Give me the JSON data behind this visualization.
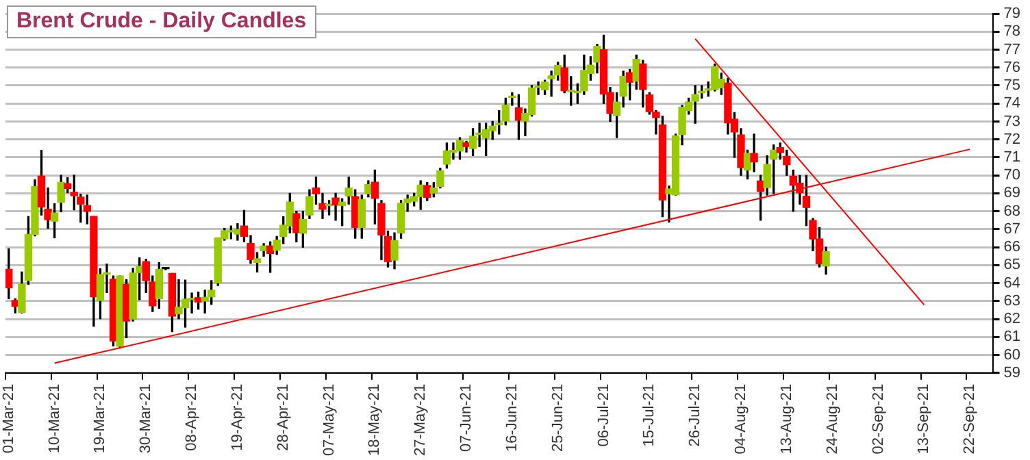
{
  "chart_data": {
    "type": "candlestick",
    "title": "Brent Crude - Daily Candles",
    "categories": [
      "01-Mar-21",
      null,
      null,
      null,
      null,
      null,
      null,
      "10-Mar-21",
      null,
      null,
      null,
      null,
      null,
      null,
      "19-Mar-21",
      null,
      null,
      null,
      null,
      null,
      null,
      "30-Mar-21",
      null,
      null,
      null,
      null,
      null,
      null,
      "08-Apr-21",
      null,
      null,
      null,
      null,
      null,
      null,
      "19-Apr-21",
      null,
      null,
      null,
      null,
      null,
      null,
      "28-Apr-21",
      null,
      null,
      null,
      null,
      null,
      null,
      "07-May-21",
      null,
      null,
      null,
      null,
      null,
      null,
      "18-May-21",
      null,
      null,
      null,
      null,
      null,
      null,
      "27-May-21",
      null,
      null,
      null,
      null,
      null,
      null,
      "07-Jun-21",
      null,
      null,
      null,
      null,
      null,
      null,
      "16-Jun-21",
      null,
      null,
      null,
      null,
      null,
      null,
      "25-Jun-21",
      null,
      null,
      null,
      null,
      null,
      null,
      "06-Jul-21",
      null,
      null,
      null,
      null,
      null,
      null,
      "15-Jul-21",
      null,
      null,
      null,
      null,
      null,
      null,
      "26-Jul-21",
      null,
      null,
      null,
      null,
      null,
      null,
      "04-Aug-21",
      null,
      null,
      null,
      null,
      null,
      null,
      "13-Aug-21",
      null,
      null,
      null,
      null,
      null,
      null,
      "24-Aug-21",
      null,
      null,
      null,
      null,
      null,
      null,
      "02-Sep-21",
      null,
      null,
      null,
      null,
      null,
      null,
      "13-Sep-21",
      null,
      null,
      null,
      null,
      null,
      null,
      "22-Sep-21",
      null,
      null,
      null
    ],
    "ohlc": [
      [
        64.77,
        65.91,
        63.13,
        63.74
      ],
      [
        63.03,
        63.13,
        62.34,
        62.71
      ],
      [
        62.37,
        64.62,
        62.34,
        63.95
      ],
      [
        64.14,
        67.71,
        63.93,
        66.71
      ],
      [
        66.71,
        69.75,
        66.63,
        69.38
      ],
      [
        69.96,
        71.39,
        67.79,
        68.24
      ],
      [
        68.11,
        69.3,
        67.05,
        67.53
      ],
      [
        67.45,
        68.42,
        66.52,
        67.9
      ],
      [
        68.5,
        70.01,
        67.97,
        69.61
      ],
      [
        69.54,
        69.88,
        69.03,
        69.27
      ],
      [
        69.06,
        70.01,
        68.08,
        68.87
      ],
      [
        68.79,
        68.95,
        67.39,
        68.4
      ],
      [
        68.32,
        68.9,
        67.3,
        68
      ],
      [
        67.71,
        67.71,
        61.6,
        63.24
      ],
      [
        63.03,
        64.8,
        62.02,
        64.48
      ],
      [
        64.5,
        65.06,
        63.48,
        64.55
      ],
      [
        64.22,
        64.4,
        60.5,
        60.78
      ],
      [
        60.49,
        64.4,
        60.38,
        64.4
      ],
      [
        63.93,
        64.19,
        60.96,
        61.89
      ],
      [
        62,
        64.83,
        61.89,
        64.56
      ],
      [
        64.59,
        65.41,
        63.08,
        64.93
      ],
      [
        65.2,
        65.33,
        63.48,
        64.14
      ],
      [
        64.06,
        64.4,
        62.42,
        62.74
      ],
      [
        63.13,
        65.14,
        62.6,
        64.77
      ],
      [
        64.8,
        64.85,
        64.75,
        64.8
      ],
      [
        64.54,
        64.54,
        61.3,
        62.16
      ],
      [
        62.29,
        64.19,
        62.02,
        62.66
      ],
      [
        62.63,
        64.17,
        61.55,
        63.11
      ],
      [
        63.08,
        63.45,
        62.34,
        63.1
      ],
      [
        63.19,
        63.5,
        62.55,
        62.95
      ],
      [
        63,
        63.61,
        62.34,
        63.21
      ],
      [
        63.24,
        64.14,
        62.82,
        63.61
      ],
      [
        64.01,
        66.52,
        63.87,
        66.52
      ],
      [
        66.47,
        67.05,
        66.39,
        66.92
      ],
      [
        66.85,
        67.18,
        66.47,
        66.88
      ],
      [
        66.73,
        67.31,
        66.39,
        66.99
      ],
      [
        67.18,
        68.05,
        66.31,
        66.6
      ],
      [
        66.21,
        66.65,
        65.1,
        65.31
      ],
      [
        65.15,
        65.7,
        64.62,
        65.36
      ],
      [
        65.81,
        66.2,
        65.5,
        66.07
      ],
      [
        66.07,
        66.3,
        64.6,
        65.65
      ],
      [
        65.83,
        66.6,
        65.6,
        66.39
      ],
      [
        66.6,
        67.7,
        66.2,
        67.23
      ],
      [
        67.18,
        69,
        66.8,
        68.51
      ],
      [
        67.87,
        68,
        66.3,
        66.81
      ],
      [
        66.78,
        68,
        66,
        67.55
      ],
      [
        67.79,
        69.2,
        67.6,
        68.82
      ],
      [
        69.3,
        69.9,
        68.4,
        68.98
      ],
      [
        68.43,
        69,
        67.6,
        68.11
      ],
      [
        68.32,
        68.6,
        67.8,
        68.35
      ],
      [
        68.74,
        69,
        67.5,
        68.35
      ],
      [
        68.32,
        68.7,
        67.2,
        68.51
      ],
      [
        68.85,
        69.9,
        68.4,
        69.3
      ],
      [
        68.82,
        69.2,
        66.5,
        67.1
      ],
      [
        67.1,
        68.9,
        66.5,
        68.66
      ],
      [
        68.98,
        69.7,
        68.8,
        69.49
      ],
      [
        69.62,
        70.3,
        67.3,
        68.72
      ],
      [
        68.43,
        68.6,
        65.3,
        66.68
      ],
      [
        66.6,
        66.9,
        64.9,
        65.2
      ],
      [
        65.28,
        66.8,
        64.8,
        66.37
      ],
      [
        66.79,
        68.6,
        66.5,
        68.45
      ],
      [
        68.48,
        68.9,
        68,
        68.69
      ],
      [
        68.56,
        69,
        68.3,
        68.82
      ],
      [
        68.82,
        69.7,
        68.1,
        69.46
      ],
      [
        69.43,
        69.6,
        68.6,
        68.77
      ],
      [
        69.01,
        69.6,
        68.8,
        69.3
      ],
      [
        69.38,
        70.4,
        69.3,
        70.25
      ],
      [
        70.62,
        71.8,
        70.4,
        71.36
      ],
      [
        71.28,
        71.8,
        70.9,
        71.39
      ],
      [
        71.36,
        72.1,
        70.9,
        71.95
      ],
      [
        71.81,
        71.9,
        71.3,
        71.6
      ],
      [
        71.5,
        72.6,
        71.1,
        72.18
      ],
      [
        72.28,
        72.9,
        71.6,
        72.3
      ],
      [
        72.08,
        72.9,
        71.1,
        72.55
      ],
      [
        72.48,
        73,
        72,
        72.74
      ],
      [
        72.82,
        73.6,
        72.3,
        72.84
      ],
      [
        73.02,
        74.3,
        72.8,
        73.92
      ],
      [
        74.34,
        74.6,
        73.9,
        74.35
      ],
      [
        73.76,
        74.5,
        72,
        73.07
      ],
      [
        73.02,
        73.7,
        72.2,
        73.45
      ],
      [
        73.39,
        75,
        73.3,
        74.87
      ],
      [
        74.9,
        75.2,
        74.5,
        74.92
      ],
      [
        74.77,
        75.3,
        74.5,
        75.19
      ],
      [
        75.38,
        75.8,
        74.4,
        75.54
      ],
      [
        75.59,
        76.3,
        75.3,
        76.12
      ],
      [
        75.98,
        76.7,
        74.6,
        74.71
      ],
      [
        74.66,
        75.5,
        73.9,
        74.66
      ],
      [
        74.6,
        75.1,
        74,
        74.62
      ],
      [
        74.71,
        76.7,
        74.5,
        75.85
      ],
      [
        75.67,
        76.6,
        75.3,
        76.14
      ],
      [
        76.3,
        77.3,
        75.7,
        77.18
      ],
      [
        76.99,
        77.8,
        74,
        74.53
      ],
      [
        74.61,
        74.9,
        73,
        73.45
      ],
      [
        73.34,
        74.6,
        72.1,
        74.08
      ],
      [
        74.4,
        75.8,
        73.8,
        75.51
      ],
      [
        75.72,
        75.9,
        74.2,
        75.19
      ],
      [
        75.24,
        76.7,
        74.8,
        76.46
      ],
      [
        76.2,
        76.4,
        73.8,
        74.79
      ],
      [
        74.48,
        74.6,
        73.4,
        73.55
      ],
      [
        73.52,
        73.6,
        72.3,
        73.21
      ],
      [
        72.81,
        73.3,
        67.7,
        68.63
      ],
      [
        68.97,
        69.4,
        67.4,
        69.24
      ],
      [
        68.92,
        72.3,
        68.9,
        72.2
      ],
      [
        72.28,
        73.9,
        71.7,
        73.79
      ],
      [
        73.6,
        74.3,
        73.4,
        74.08
      ],
      [
        74.13,
        75,
        72.9,
        74.5
      ],
      [
        74.6,
        75,
        74.3,
        74.61
      ],
      [
        74.74,
        75.2,
        74.4,
        74.76
      ],
      [
        74.79,
        76.2,
        74.7,
        76.06
      ],
      [
        74.87,
        75.7,
        74.5,
        75.35
      ],
      [
        75.14,
        75.4,
        72.3,
        72.92
      ],
      [
        73.13,
        73.5,
        71,
        72.41
      ],
      [
        72.25,
        72.6,
        70,
        70.43
      ],
      [
        70.3,
        71.4,
        69.8,
        71.22
      ],
      [
        71.22,
        72.3,
        70.2,
        70.75
      ],
      [
        69.69,
        70,
        67.5,
        69.11
      ],
      [
        69.32,
        71.1,
        68.9,
        70.61
      ],
      [
        70.9,
        71.7,
        69,
        71.4
      ],
      [
        71.54,
        71.8,
        70.9,
        71.27
      ],
      [
        71.06,
        71.4,
        70,
        70.59
      ],
      [
        69.95,
        70.3,
        68,
        69.45
      ],
      [
        69.56,
        70,
        68.4,
        69.03
      ],
      [
        68.84,
        70,
        67.2,
        68.21
      ],
      [
        67.49,
        67.6,
        65.8,
        66.46
      ],
      [
        66.46,
        67.1,
        64.9,
        65.08
      ],
      [
        64.95,
        66,
        64.5,
        65.75
      ],
      null,
      null,
      null,
      null,
      null,
      null,
      null,
      null,
      null,
      null,
      null,
      null,
      null,
      null,
      null,
      null,
      null,
      null,
      null,
      null,
      null,
      null,
      null,
      null,
      null
    ],
    "colors": [
      "#ff0000",
      "#ff0000",
      "#99cc00",
      "#99cc00",
      "#99cc00",
      "#ff0000",
      "#ff0000",
      "#99cc00",
      "#99cc00",
      "#ff0000",
      "#ff0000",
      "#ff0000",
      "#ff0000",
      "#ff0000",
      "#99cc00",
      "#99cc00",
      "#ff0000",
      "#99cc00",
      "#ff0000",
      "#99cc00",
      "#99cc00",
      "#ff0000",
      "#ff0000",
      "#99cc00",
      "#000000",
      "#ff0000",
      "#99cc00",
      "#99cc00",
      "#99cc00",
      "#ff0000",
      "#99cc00",
      "#99cc00",
      "#99cc00",
      "#99cc00",
      "#99cc00",
      "#99cc00",
      "#ff0000",
      "#ff0000",
      "#99cc00",
      "#99cc00",
      "#ff0000",
      "#99cc00",
      "#99cc00",
      "#99cc00",
      "#ff0000",
      "#99cc00",
      "#99cc00",
      "#ff0000",
      "#ff0000",
      "#99cc00",
      "#ff0000",
      "#99cc00",
      "#99cc00",
      "#ff0000",
      "#99cc00",
      "#99cc00",
      "#ff0000",
      "#ff0000",
      "#ff0000",
      "#99cc00",
      "#99cc00",
      "#99cc00",
      "#99cc00",
      "#99cc00",
      "#ff0000",
      "#99cc00",
      "#99cc00",
      "#99cc00",
      "#99cc00",
      "#99cc00",
      "#ff0000",
      "#99cc00",
      "#99cc00",
      "#99cc00",
      "#99cc00",
      "#99cc00",
      "#99cc00",
      "#99cc00",
      "#ff0000",
      "#99cc00",
      "#99cc00",
      "#99cc00",
      "#99cc00",
      "#99cc00",
      "#99cc00",
      "#ff0000",
      "#99cc00",
      "#99cc00",
      "#99cc00",
      "#99cc00",
      "#99cc00",
      "#ff0000",
      "#ff0000",
      "#99cc00",
      "#99cc00",
      "#ff0000",
      "#99cc00",
      "#ff0000",
      "#ff0000",
      "#ff0000",
      "#ff0000",
      "#99cc00",
      "#99cc00",
      "#99cc00",
      "#99cc00",
      "#99cc00",
      "#99cc00",
      "#99cc00",
      "#99cc00",
      "#99cc00",
      "#ff0000",
      "#ff0000",
      "#ff0000",
      "#99cc00",
      "#ff0000",
      "#ff0000",
      "#99cc00",
      "#99cc00",
      "#ff0000",
      "#ff0000",
      "#ff0000",
      "#ff0000",
      "#ff0000",
      "#ff0000",
      "#ff0000",
      "#99cc00",
      null,
      null,
      null,
      null,
      null,
      null,
      null,
      null,
      null,
      null,
      null,
      null,
      null,
      null,
      null,
      null,
      null,
      null,
      null,
      null,
      null,
      null,
      null,
      null,
      null
    ],
    "series": [
      {
        "type": "line",
        "x": [
          "10-Mar-21",
          "22-Sep-21"
        ],
        "values": [
          59.55,
          71.45
        ],
        "color": "#ff0000"
      },
      {
        "type": "line",
        "x": [
          "26-Jul-21",
          "13-Sep-21"
        ],
        "values": [
          77.6,
          62.8
        ],
        "color": "#ff0000"
      }
    ],
    "marker": "none",
    "ylim": [
      59,
      79
    ],
    "yticks": [
      59,
      60,
      61,
      62,
      63,
      64,
      65,
      66,
      67,
      68,
      69,
      70,
      71,
      72,
      73,
      74,
      75,
      76,
      77,
      78,
      79
    ],
    "grid": "y",
    "legend": false
  }
}
